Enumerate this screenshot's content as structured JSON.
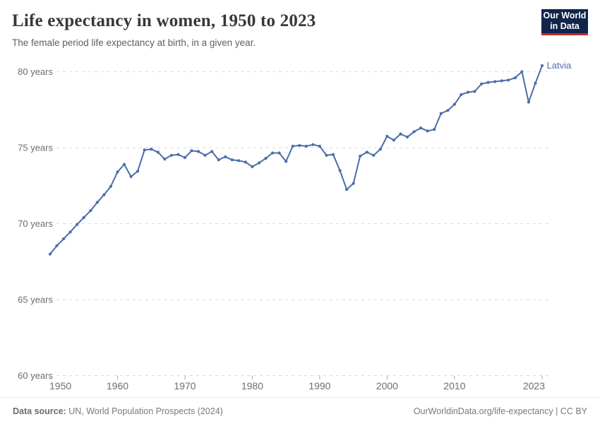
{
  "header": {
    "title": "Life expectancy in women, 1950 to 2023",
    "subtitle": "The female period life expectancy at birth, in a given year."
  },
  "logo": {
    "line1": "Our World",
    "line2": "in Data",
    "bg_color": "#10254A",
    "accent_color": "#C62A33"
  },
  "chart_data": {
    "type": "line",
    "title": "Life expectancy in women, 1950 to 2023",
    "subtitle": "The female period life expectancy at birth, in a given year.",
    "xlim": [
      1950,
      2023
    ],
    "ylim": [
      60,
      81.5
    ],
    "grid": "horizontal-dashed",
    "legend_position": "end-of-line-label",
    "x_ticks": [
      1950,
      1960,
      1970,
      1980,
      1990,
      2000,
      2010,
      2023
    ],
    "y_ticks": [
      60,
      65,
      70,
      75,
      80
    ],
    "y_tick_suffix": " years",
    "grid_color": "#dadada",
    "tick_color": "#ababab",
    "axis_label_color": "#6e6e6e",
    "series": [
      {
        "name": "Latvia",
        "color": "#4C6DA9",
        "x": [
          1950,
          1951,
          1952,
          1953,
          1954,
          1955,
          1956,
          1957,
          1958,
          1959,
          1960,
          1961,
          1962,
          1963,
          1964,
          1965,
          1966,
          1967,
          1968,
          1969,
          1970,
          1971,
          1972,
          1973,
          1974,
          1975,
          1976,
          1977,
          1978,
          1979,
          1980,
          1981,
          1982,
          1983,
          1984,
          1985,
          1986,
          1987,
          1988,
          1989,
          1990,
          1991,
          1992,
          1993,
          1994,
          1995,
          1996,
          1997,
          1998,
          1999,
          2000,
          2001,
          2002,
          2003,
          2004,
          2005,
          2006,
          2007,
          2008,
          2009,
          2010,
          2011,
          2012,
          2013,
          2014,
          2015,
          2016,
          2017,
          2018,
          2019,
          2020,
          2021,
          2022,
          2023
        ],
        "values": [
          68.0,
          68.55,
          69.0,
          69.45,
          69.95,
          70.4,
          70.85,
          71.4,
          71.9,
          72.45,
          73.4,
          73.9,
          73.1,
          73.45,
          74.85,
          74.9,
          74.7,
          74.25,
          74.5,
          74.55,
          74.35,
          74.8,
          74.75,
          74.5,
          74.75,
          74.2,
          74.4,
          74.2,
          74.15,
          74.05,
          73.75,
          74.0,
          74.3,
          74.65,
          74.65,
          74.1,
          75.1,
          75.15,
          75.1,
          75.2,
          75.1,
          74.5,
          74.55,
          73.5,
          72.25,
          72.65,
          74.45,
          74.7,
          74.5,
          74.9,
          75.75,
          75.5,
          75.9,
          75.7,
          76.05,
          76.3,
          76.1,
          76.2,
          77.25,
          77.45,
          77.85,
          78.5,
          78.65,
          78.7,
          79.2,
          79.3,
          79.35,
          79.4,
          79.45,
          79.6,
          80.0,
          78.0,
          79.25,
          80.4
        ]
      }
    ]
  },
  "footer": {
    "source_prefix": "Data source:",
    "source_text": " UN, World Population Prospects (2024)",
    "link_text": "OurWorldinData.org/life-expectancy | CC BY"
  }
}
